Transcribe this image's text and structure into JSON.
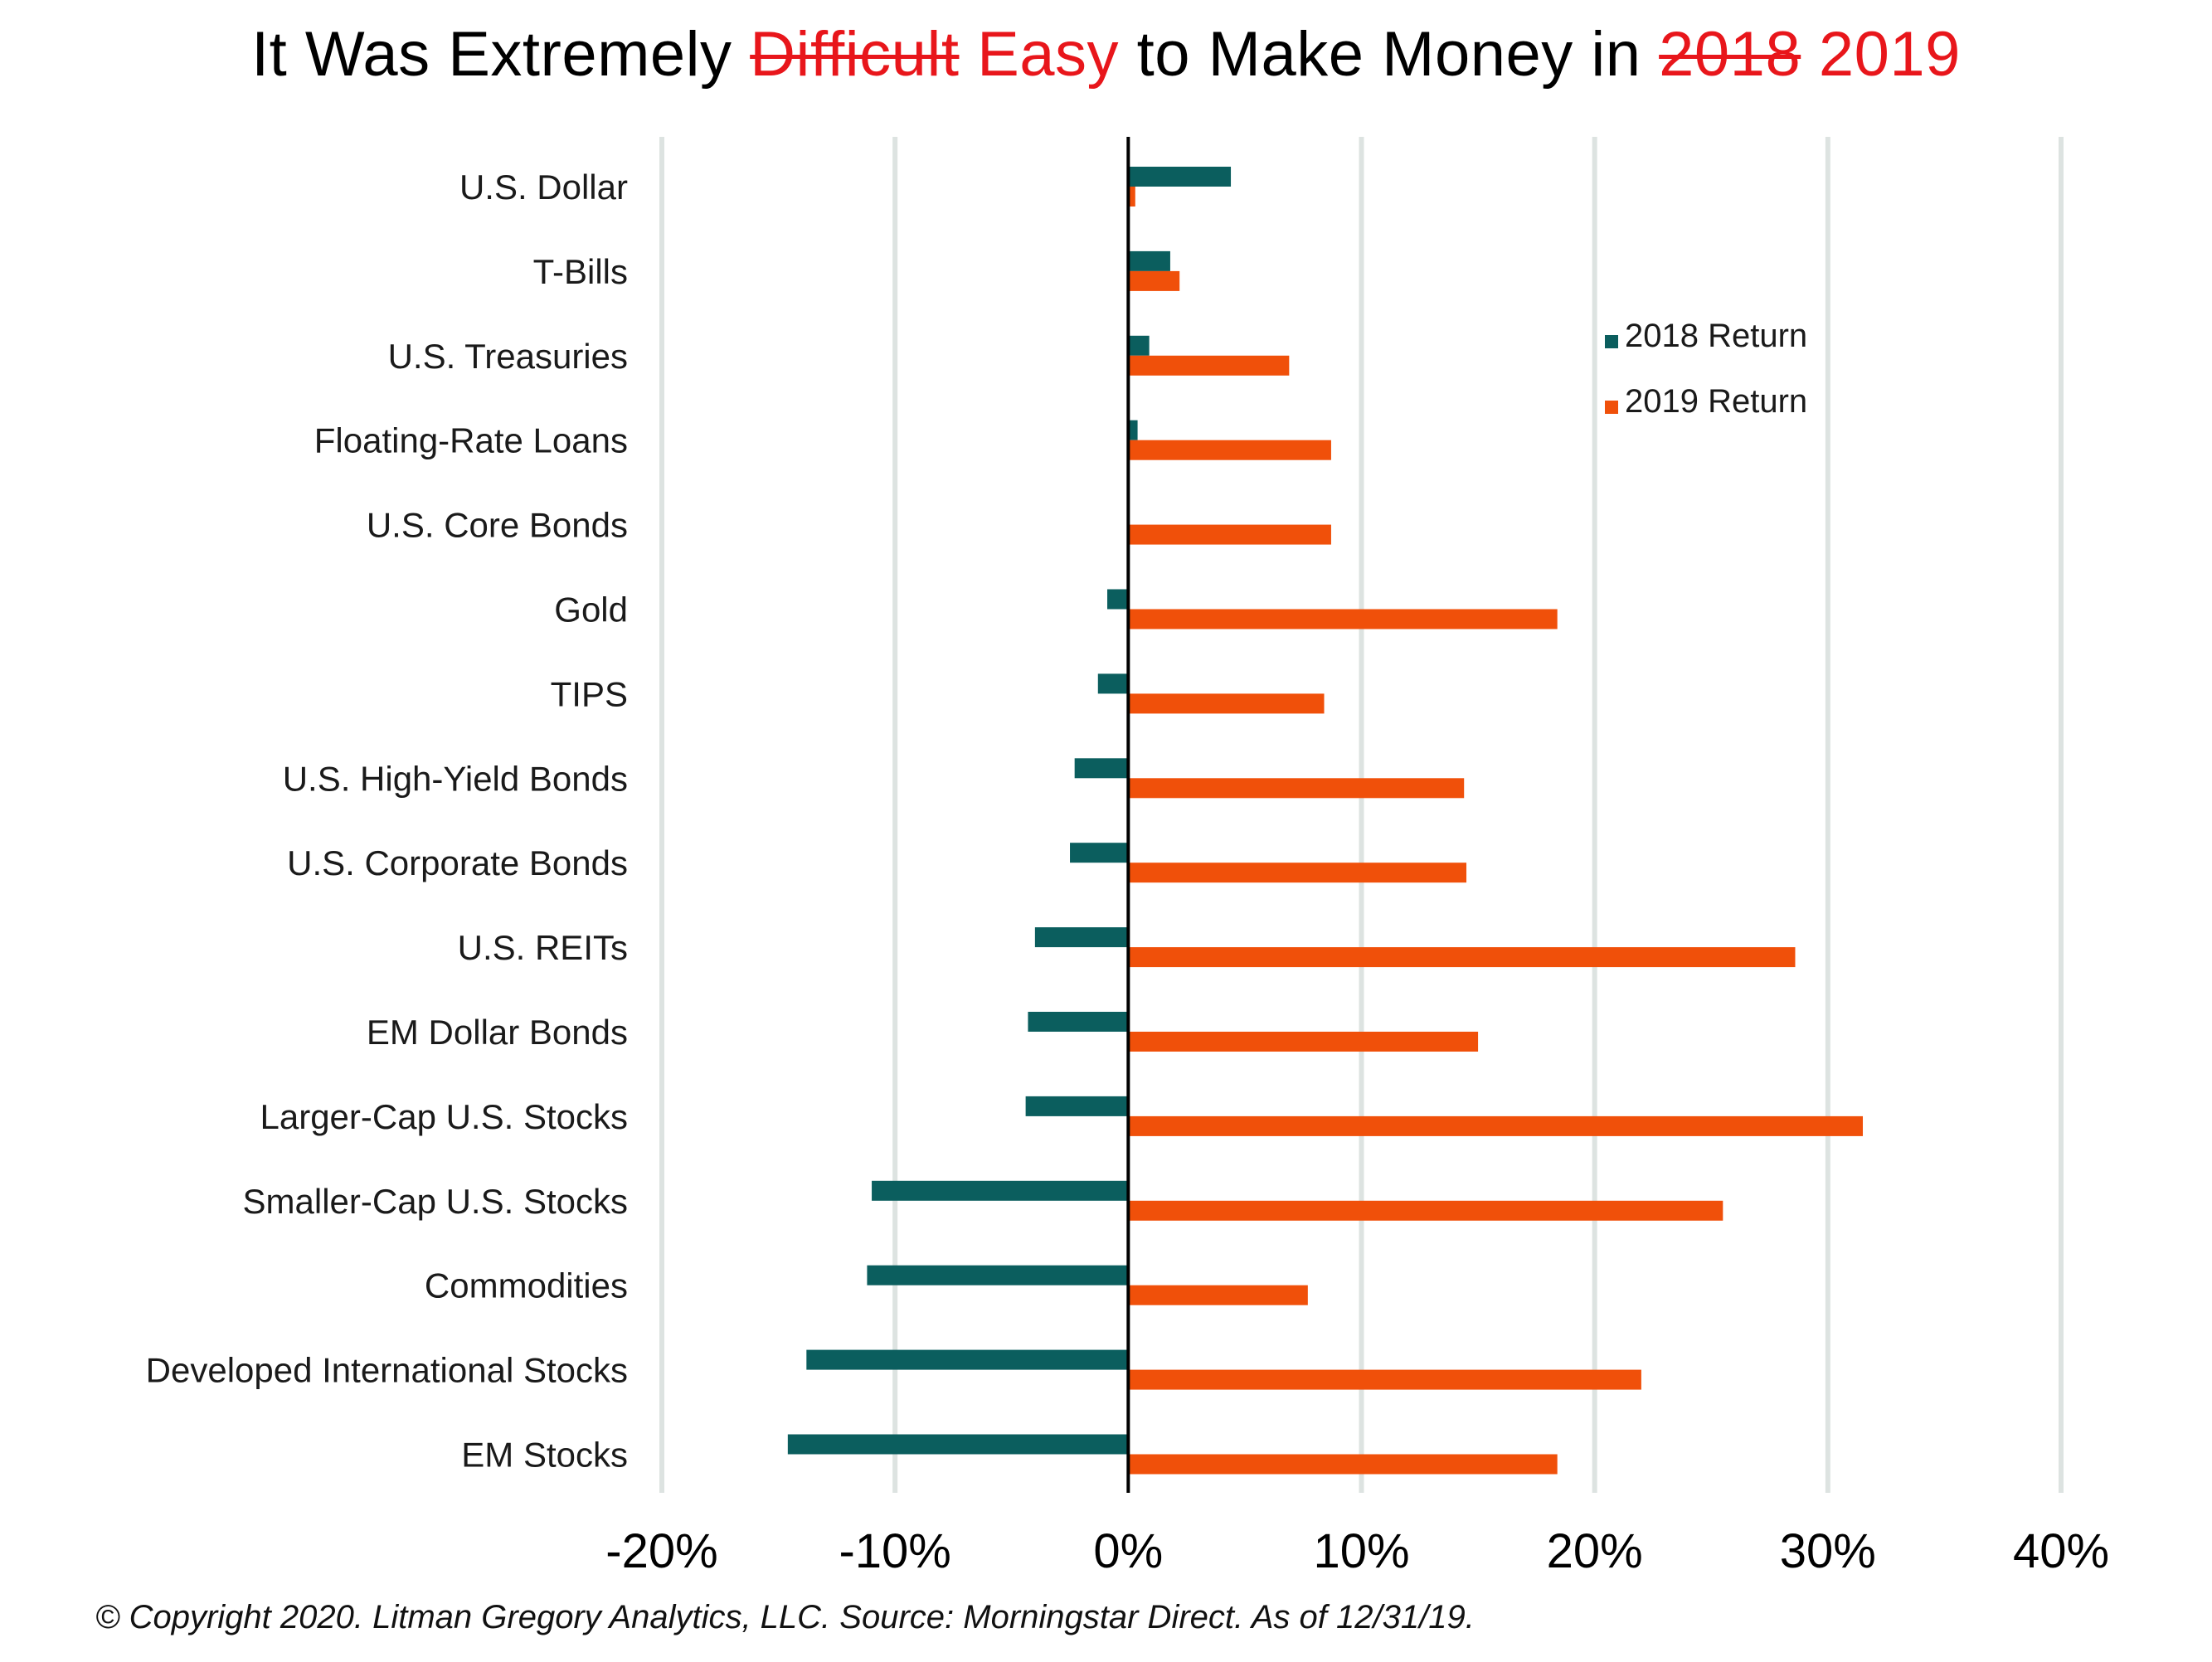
{
  "title": {
    "part1": "It Was Extremely",
    "struck_word": "Difficult",
    "replacement_word": "Easy",
    "part2": "to Make Money in",
    "struck_year": "2018",
    "replacement_year": "2019"
  },
  "footnote": "© Copyright 2020. Litman Gregory Analytics, LLC. Source: Morningstar Direct. As of 12/31/19.",
  "colors": {
    "series_2018": "#0b5e5e",
    "series_2019": "#f0500a",
    "gridline": "#dde3e1",
    "title_accent": "#e8161b"
  },
  "chart_data": {
    "type": "bar",
    "orientation": "horizontal",
    "title": "It Was Extremely Difficult Easy to Make Money in 2018 2019",
    "categories": [
      "U.S. Dollar",
      "T-Bills",
      "U.S. Treasuries",
      "Floating-Rate Loans",
      "U.S. Core Bonds",
      "Gold",
      "TIPS",
      "U.S. High-Yield Bonds",
      "U.S. Corporate Bonds",
      "U.S. REITs",
      "EM Dollar Bonds",
      "Larger-Cap U.S. Stocks",
      "Smaller-Cap U.S. Stocks",
      "Commodities",
      "Developed International Stocks",
      "EM Stocks"
    ],
    "series": [
      {
        "name": "2018 Return",
        "values": [
          4.4,
          1.8,
          0.9,
          0.4,
          0.0,
          -0.9,
          -1.3,
          -2.3,
          -2.5,
          -4.0,
          -4.3,
          -4.4,
          -11.0,
          -11.2,
          -13.8,
          -14.6
        ]
      },
      {
        "name": "2019 Return",
        "values": [
          0.3,
          2.2,
          6.9,
          8.7,
          8.7,
          18.4,
          8.4,
          14.4,
          14.5,
          28.6,
          15.0,
          31.5,
          25.5,
          7.7,
          22.0,
          18.4
        ]
      }
    ],
    "xticks": [
      "-20%",
      "-10%",
      "0%",
      "10%",
      "20%",
      "30%",
      "40%"
    ],
    "xlim": [
      -20,
      40
    ],
    "grid": true,
    "legend_position": "top-right",
    "xlabel": "",
    "ylabel": ""
  }
}
